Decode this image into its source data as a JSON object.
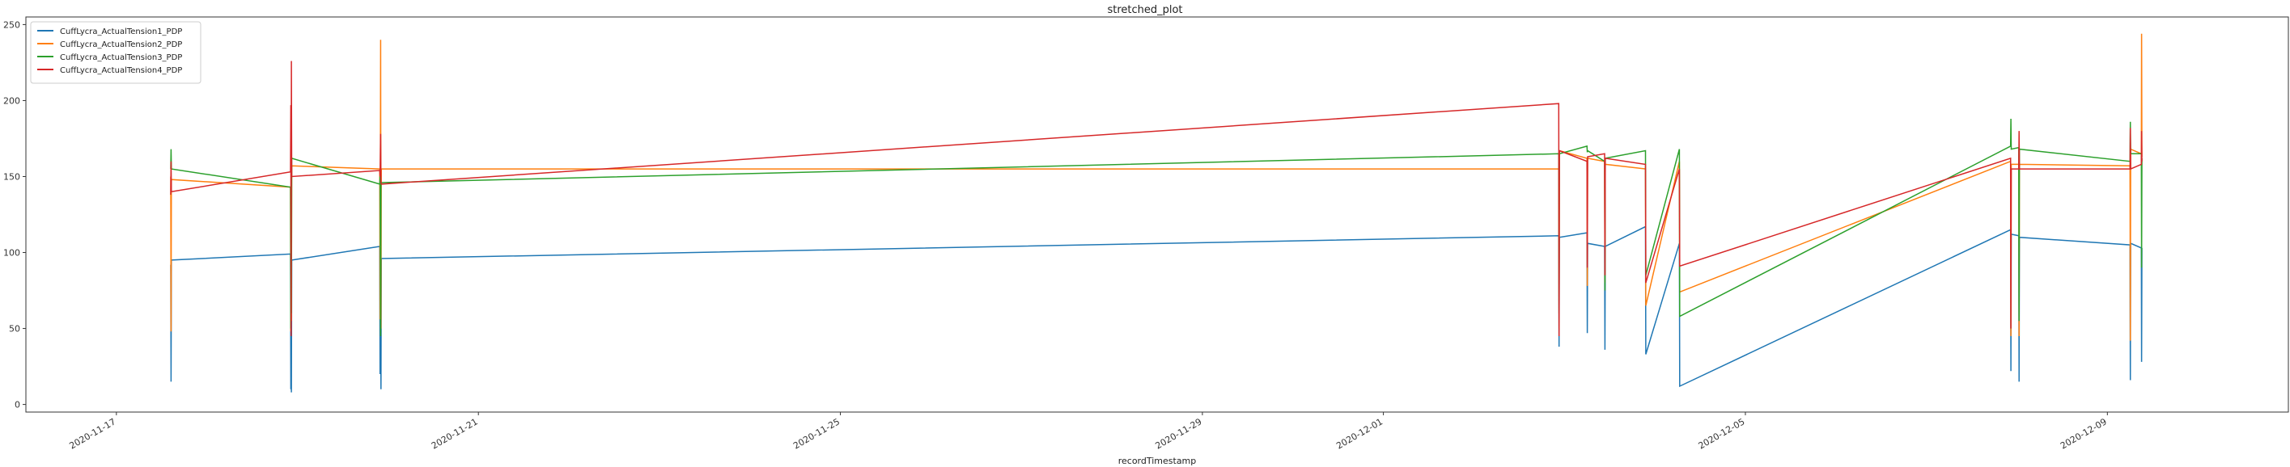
{
  "chart_data": {
    "type": "line",
    "title": "stretched_plot",
    "xlabel": "recordTimestamp",
    "ylabel": "",
    "x_type": "datetime",
    "xlim": [
      "2020-11-16T00:00",
      "2020-12-11T00:00"
    ],
    "ylim": [
      -5,
      255
    ],
    "x_ticks": [
      "2020-11-17",
      "2020-11-21",
      "2020-11-25",
      "2020-11-29",
      "2020-12-01",
      "2020-12-05",
      "2020-12-09"
    ],
    "y_ticks": [
      0,
      50,
      100,
      150,
      200,
      250
    ],
    "grid": false,
    "legend_position": "top-left",
    "series": [
      {
        "name": "CuffLycra_ActualTension1_PDP",
        "color": "#1f77b4",
        "points": [
          [
            "2020-11-17T14:25",
            92
          ],
          [
            "2020-11-17T14:30",
            15
          ],
          [
            "2020-11-17T14:35",
            95
          ],
          [
            "2020-11-18T22:10",
            99
          ],
          [
            "2020-11-18T22:15",
            10
          ],
          [
            "2020-11-18T22:20",
            45
          ],
          [
            "2020-11-18T22:25",
            8
          ],
          [
            "2020-11-18T22:30",
            95
          ],
          [
            "2020-11-19T21:50",
            104
          ],
          [
            "2020-11-19T21:55",
            20
          ],
          [
            "2020-11-19T22:05",
            60
          ],
          [
            "2020-11-19T22:10",
            10
          ],
          [
            "2020-11-19T22:15",
            96
          ],
          [
            "2020-12-02T22:30",
            111
          ],
          [
            "2020-12-02T22:35",
            38
          ],
          [
            "2020-12-02T22:40",
            110
          ],
          [
            "2020-12-03T06:00",
            113
          ],
          [
            "2020-12-03T06:05",
            47
          ],
          [
            "2020-12-03T06:10",
            106
          ],
          [
            "2020-12-03T10:40",
            104
          ],
          [
            "2020-12-03T10:45",
            36
          ],
          [
            "2020-12-03T10:50",
            104
          ],
          [
            "2020-12-03T21:30",
            117
          ],
          [
            "2020-12-03T21:35",
            33
          ],
          [
            "2020-12-04T06:30",
            106
          ],
          [
            "2020-12-04T06:35",
            12
          ],
          [
            "2020-12-07T22:20",
            115
          ],
          [
            "2020-12-07T22:25",
            22
          ],
          [
            "2020-12-07T22:30",
            112
          ],
          [
            "2020-12-08T00:30",
            111
          ],
          [
            "2020-12-08T00:35",
            15
          ],
          [
            "2020-12-08T00:40",
            110
          ],
          [
            "2020-12-09T06:00",
            105
          ],
          [
            "2020-12-09T06:05",
            16
          ],
          [
            "2020-12-09T06:10",
            106
          ],
          [
            "2020-12-09T09:00",
            103
          ],
          [
            "2020-12-09T09:05",
            28
          ],
          [
            "2020-12-09T09:10",
            103
          ]
        ]
      },
      {
        "name": "CuffLycra_ActualTension2_PDP",
        "color": "#ff7f0e",
        "points": [
          [
            "2020-11-17T14:25",
            150
          ],
          [
            "2020-11-17T14:30",
            48
          ],
          [
            "2020-11-17T14:35",
            148
          ],
          [
            "2020-11-18T22:10",
            143
          ],
          [
            "2020-11-18T22:15",
            48
          ],
          [
            "2020-11-18T22:20",
            160
          ],
          [
            "2020-11-18T22:25",
            55
          ],
          [
            "2020-11-18T22:30",
            157
          ],
          [
            "2020-11-19T21:50",
            155
          ],
          [
            "2020-11-19T21:55",
            56
          ],
          [
            "2020-11-19T22:05",
            240
          ],
          [
            "2020-11-19T22:10",
            50
          ],
          [
            "2020-11-19T22:15",
            155
          ],
          [
            "2020-12-02T22:30",
            155
          ],
          [
            "2020-12-02T22:35",
            50
          ],
          [
            "2020-12-02T22:40",
            167
          ],
          [
            "2020-12-03T06:00",
            162
          ],
          [
            "2020-12-03T06:05",
            78
          ],
          [
            "2020-12-03T06:10",
            162
          ],
          [
            "2020-12-03T10:40",
            160
          ],
          [
            "2020-12-03T10:45",
            80
          ],
          [
            "2020-12-03T10:50",
            158
          ],
          [
            "2020-12-03T21:30",
            155
          ],
          [
            "2020-12-03T21:35",
            65
          ],
          [
            "2020-12-04T06:30",
            160
          ],
          [
            "2020-12-04T06:35",
            74
          ],
          [
            "2020-12-07T22:20",
            160
          ],
          [
            "2020-12-07T22:25",
            45
          ],
          [
            "2020-12-07T22:30",
            158
          ],
          [
            "2020-12-08T00:30",
            158
          ],
          [
            "2020-12-08T00:35",
            45
          ],
          [
            "2020-12-08T00:40",
            158
          ],
          [
            "2020-12-09T06:00",
            157
          ],
          [
            "2020-12-09T06:05",
            42
          ],
          [
            "2020-12-09T06:10",
            168
          ],
          [
            "2020-12-09T09:00",
            165
          ],
          [
            "2020-12-09T09:05",
            244
          ],
          [
            "2020-12-09T09:10",
            163
          ]
        ]
      },
      {
        "name": "CuffLycra_ActualTension3_PDP",
        "color": "#2ca02c",
        "points": [
          [
            "2020-11-17T14:25",
            155
          ],
          [
            "2020-11-17T14:30",
            168
          ],
          [
            "2020-11-17T14:35",
            155
          ],
          [
            "2020-11-18T22:10",
            143
          ],
          [
            "2020-11-18T22:15",
            50
          ],
          [
            "2020-11-18T22:20",
            190
          ],
          [
            "2020-11-18T22:25",
            60
          ],
          [
            "2020-11-18T22:30",
            162
          ],
          [
            "2020-11-19T21:50",
            145
          ],
          [
            "2020-11-19T21:55",
            150
          ],
          [
            "2020-11-19T22:05",
            45
          ],
          [
            "2020-11-19T22:10",
            145
          ],
          [
            "2020-11-19T22:15",
            146
          ],
          [
            "2020-12-02T22:30",
            165
          ],
          [
            "2020-12-02T22:35",
            60
          ],
          [
            "2020-12-02T22:40",
            165
          ],
          [
            "2020-12-03T06:00",
            170
          ],
          [
            "2020-12-03T06:05",
            166
          ],
          [
            "2020-12-03T06:10",
            167
          ],
          [
            "2020-12-03T10:40",
            160
          ],
          [
            "2020-12-03T10:45",
            75
          ],
          [
            "2020-12-03T10:50",
            162
          ],
          [
            "2020-12-03T21:30",
            167
          ],
          [
            "2020-12-03T21:35",
            85
          ],
          [
            "2020-12-04T06:30",
            168
          ],
          [
            "2020-12-04T06:35",
            58
          ],
          [
            "2020-12-07T22:20",
            170
          ],
          [
            "2020-12-07T22:25",
            188
          ],
          [
            "2020-12-07T22:30",
            168
          ],
          [
            "2020-12-08T00:30",
            169
          ],
          [
            "2020-12-08T00:35",
            55
          ],
          [
            "2020-12-08T00:40",
            168
          ],
          [
            "2020-12-09T06:00",
            160
          ],
          [
            "2020-12-09T06:05",
            186
          ],
          [
            "2020-12-09T06:10",
            165
          ],
          [
            "2020-12-09T09:00",
            165
          ],
          [
            "2020-12-09T09:05",
            90
          ],
          [
            "2020-12-09T09:10",
            162
          ]
        ]
      },
      {
        "name": "CuffLycra_ActualTension4_PDP",
        "color": "#d62728",
        "points": [
          [
            "2020-11-17T14:25",
            138
          ],
          [
            "2020-11-17T14:30",
            160
          ],
          [
            "2020-11-17T14:35",
            140
          ],
          [
            "2020-11-18T22:10",
            153
          ],
          [
            "2020-11-18T22:15",
            197
          ],
          [
            "2020-11-18T22:20",
            45
          ],
          [
            "2020-11-18T22:25",
            226
          ],
          [
            "2020-11-18T22:30",
            150
          ],
          [
            "2020-11-19T21:50",
            154
          ],
          [
            "2020-11-19T21:55",
            150
          ],
          [
            "2020-11-19T22:05",
            178
          ],
          [
            "2020-11-19T22:10",
            146
          ],
          [
            "2020-11-19T22:15",
            145
          ],
          [
            "2020-12-02T22:30",
            198
          ],
          [
            "2020-12-02T22:35",
            45
          ],
          [
            "2020-12-02T22:40",
            167
          ],
          [
            "2020-12-03T06:00",
            160
          ],
          [
            "2020-12-03T06:05",
            90
          ],
          [
            "2020-12-03T06:10",
            163
          ],
          [
            "2020-12-03T10:40",
            165
          ],
          [
            "2020-12-03T10:45",
            85
          ],
          [
            "2020-12-03T10:50",
            162
          ],
          [
            "2020-12-03T21:30",
            158
          ],
          [
            "2020-12-03T21:35",
            80
          ],
          [
            "2020-12-04T06:30",
            155
          ],
          [
            "2020-12-04T06:35",
            91
          ],
          [
            "2020-12-07T22:20",
            162
          ],
          [
            "2020-12-07T22:25",
            50
          ],
          [
            "2020-12-07T22:30",
            155
          ],
          [
            "2020-12-08T00:30",
            155
          ],
          [
            "2020-12-08T00:35",
            180
          ],
          [
            "2020-12-08T00:40",
            155
          ],
          [
            "2020-12-09T06:00",
            155
          ],
          [
            "2020-12-09T06:05",
            182
          ],
          [
            "2020-12-09T06:10",
            155
          ],
          [
            "2020-12-09T09:00",
            158
          ],
          [
            "2020-12-09T09:05",
            180
          ],
          [
            "2020-12-09T09:10",
            160
          ]
        ]
      }
    ]
  }
}
